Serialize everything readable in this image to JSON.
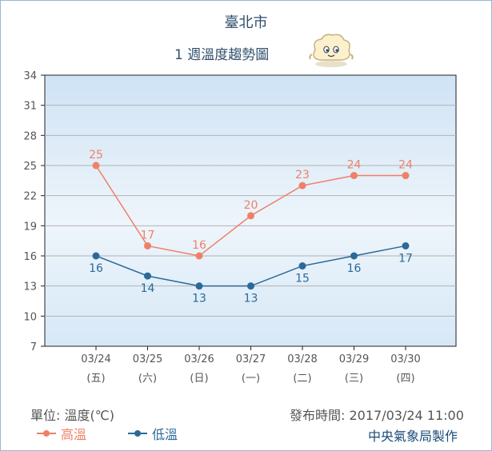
{
  "title": "臺北市",
  "subtitle": "1 週溫度趨勢圖",
  "unit_label": "單位: 溫度(℃)",
  "issued_label": "發布時間: 2017/03/24 11:00",
  "agency": "中央氣象局製作",
  "colors": {
    "high": "#ef8068",
    "low": "#2b6a98",
    "plot_top": "#cfe3f5",
    "plot_bottom": "#eef5fb",
    "grid": "#b3b3b3",
    "title": "#2f4d6b"
  },
  "mascot_icon": "cloud-mascot-icon",
  "chart_data": {
    "type": "line",
    "title": "臺北市",
    "subtitle": "1 週溫度趨勢圖",
    "xlabel": "",
    "ylabel": "",
    "categories": [
      "03/24",
      "03/25",
      "03/26",
      "03/27",
      "03/28",
      "03/29",
      "03/30"
    ],
    "weekday_labels": [
      "(五)",
      "(六)",
      "(日)",
      "(一)",
      "(二)",
      "(三)",
      "(四)"
    ],
    "y_ticks": [
      7,
      10,
      13,
      16,
      19,
      22,
      25,
      28,
      31,
      34
    ],
    "ylim": [
      7,
      34
    ],
    "grid": true,
    "legend_position": "bottom-left",
    "series": [
      {
        "name": "高溫",
        "values": [
          25,
          17,
          16,
          20,
          23,
          24,
          24
        ],
        "color": "#ef8068",
        "label_position": "above"
      },
      {
        "name": "低溫",
        "values": [
          16,
          14,
          13,
          13,
          15,
          16,
          17
        ],
        "color": "#2b6a98",
        "label_position": "below"
      }
    ]
  }
}
